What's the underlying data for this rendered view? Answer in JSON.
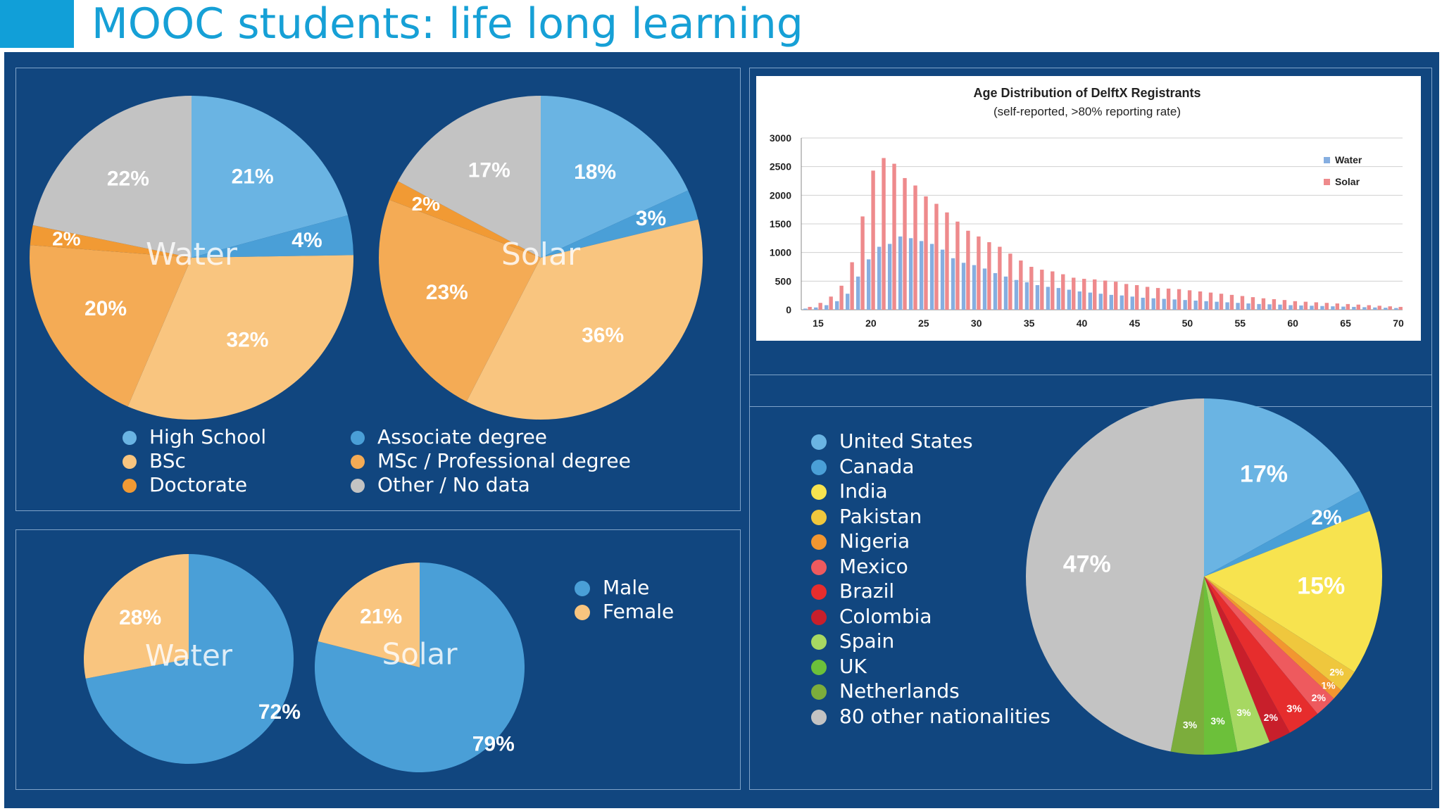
{
  "title": "MOOC students: life long learning",
  "colors": {
    "title": "#16a0d6",
    "background": "#11467f",
    "high_school": "#6ab4e3",
    "associate": "#4a9fd7",
    "bsc": "#f9c57f",
    "msc": "#f4ab55",
    "doctorate": "#f19a34",
    "other": "#c3c3c3"
  },
  "chart_data": [
    {
      "id": "education_water",
      "type": "pie",
      "center_label": "Water",
      "slices": [
        {
          "category": "High School",
          "value": 21,
          "label": "21%",
          "color": "#6ab4e3"
        },
        {
          "category": "Associate degree",
          "value": 4,
          "label": "4%",
          "color": "#4a9fd7"
        },
        {
          "category": "BSc",
          "value": 32,
          "label": "32%",
          "color": "#f9c57f"
        },
        {
          "category": "MSc / Professional degree",
          "value": 20,
          "label": "20%",
          "color": "#f4ab55"
        },
        {
          "category": "Doctorate",
          "value": 2,
          "label": "2%",
          "color": "#f19a34"
        },
        {
          "category": "Other / No data",
          "value": 22,
          "label": "22%",
          "color": "#c3c3c3"
        }
      ]
    },
    {
      "id": "education_solar",
      "type": "pie",
      "center_label": "Solar",
      "slices": [
        {
          "category": "High School",
          "value": 18,
          "label": "18%",
          "color": "#6ab4e3"
        },
        {
          "category": "Associate degree",
          "value": 3,
          "label": "3%",
          "color": "#4a9fd7"
        },
        {
          "category": "BSc",
          "value": 36,
          "label": "36%",
          "color": "#f9c57f"
        },
        {
          "category": "MSc / Professional degree",
          "value": 23,
          "label": "23%",
          "color": "#f4ab55"
        },
        {
          "category": "Doctorate",
          "value": 2,
          "label": "2%",
          "color": "#f19a34"
        },
        {
          "category": "Other / No data",
          "value": 17,
          "label": "17%",
          "color": "#c3c3c3"
        }
      ]
    },
    {
      "id": "education_legend",
      "type": "legend",
      "items": [
        {
          "label": "High School",
          "color": "#6ab4e3"
        },
        {
          "label": "Associate degree",
          "color": "#4a9fd7"
        },
        {
          "label": "BSc",
          "color": "#f9c57f"
        },
        {
          "label": "MSc / Professional degree",
          "color": "#f4ab55"
        },
        {
          "label": "Doctorate",
          "color": "#f19a34"
        },
        {
          "label": "Other / No data",
          "color": "#c3c3c3"
        }
      ]
    },
    {
      "id": "gender_water",
      "type": "pie",
      "center_label": "Water",
      "slices": [
        {
          "category": "Male",
          "value": 72,
          "label": "72%",
          "color": "#4a9fd7"
        },
        {
          "category": "Female",
          "value": 28,
          "label": "28%",
          "color": "#f9c57f"
        }
      ]
    },
    {
      "id": "gender_solar",
      "type": "pie",
      "center_label": "Solar",
      "slices": [
        {
          "category": "Male",
          "value": 79,
          "label": "79%",
          "color": "#4a9fd7"
        },
        {
          "category": "Female",
          "value": 21,
          "label": "21%",
          "color": "#f9c57f"
        }
      ]
    },
    {
      "id": "gender_legend",
      "type": "legend",
      "items": [
        {
          "label": "Male",
          "color": "#4a9fd7"
        },
        {
          "label": "Female",
          "color": "#f9c57f"
        }
      ]
    },
    {
      "id": "age_distribution",
      "type": "bar",
      "title": "Age Distribution of DelftX Registrants",
      "subtitle": "(self-reported, >80% reporting rate)",
      "x": [
        14,
        15,
        16,
        17,
        18,
        19,
        20,
        21,
        22,
        23,
        24,
        25,
        26,
        27,
        28,
        29,
        30,
        31,
        32,
        33,
        34,
        35,
        36,
        37,
        38,
        39,
        40,
        41,
        42,
        43,
        44,
        45,
        46,
        47,
        48,
        49,
        50,
        51,
        52,
        53,
        54,
        55,
        56,
        57,
        58,
        59,
        60,
        61,
        62,
        63,
        64,
        65,
        66,
        67,
        68,
        69,
        70
      ],
      "x_ticks": [
        15,
        20,
        25,
        30,
        35,
        40,
        45,
        50,
        55,
        60,
        65,
        70
      ],
      "xlim": [
        13.4,
        70.4
      ],
      "ylim": [
        0,
        3000
      ],
      "y_ticks": [
        0,
        500,
        1000,
        1500,
        2000,
        2500,
        3000
      ],
      "grid": true,
      "legend_position": "top-right",
      "series": [
        {
          "name": "Water",
          "color": "#86aee0",
          "values": [
            20,
            40,
            80,
            150,
            280,
            580,
            880,
            1100,
            1150,
            1280,
            1250,
            1200,
            1150,
            1050,
            900,
            820,
            780,
            720,
            640,
            580,
            520,
            480,
            430,
            400,
            380,
            350,
            320,
            300,
            280,
            260,
            250,
            230,
            210,
            200,
            190,
            180,
            170,
            160,
            150,
            140,
            130,
            120,
            110,
            100,
            95,
            90,
            80,
            75,
            70,
            65,
            60,
            55,
            50,
            45,
            40,
            35,
            30
          ]
        },
        {
          "name": "Solar",
          "color": "#ee8a8c",
          "values": [
            50,
            120,
            230,
            420,
            830,
            1630,
            2430,
            2650,
            2550,
            2300,
            2170,
            1980,
            1850,
            1700,
            1540,
            1380,
            1280,
            1180,
            1100,
            980,
            860,
            750,
            700,
            670,
            620,
            560,
            540,
            530,
            510,
            490,
            450,
            430,
            400,
            380,
            370,
            360,
            340,
            320,
            300,
            280,
            260,
            240,
            220,
            200,
            185,
            170,
            150,
            140,
            130,
            120,
            110,
            100,
            90,
            80,
            70,
            60,
            50
          ]
        }
      ]
    },
    {
      "id": "nationality",
      "type": "pie",
      "slices": [
        {
          "category": "United States",
          "value": 17,
          "label": "17%",
          "color": "#6ab4e3"
        },
        {
          "category": "Canada",
          "value": 2,
          "label": "2%",
          "color": "#4a9fd7"
        },
        {
          "category": "India",
          "value": 15,
          "label": "15%",
          "color": "#f7e34f"
        },
        {
          "category": "Pakistan",
          "value": 2,
          "label": "2%",
          "color": "#efc73d"
        },
        {
          "category": "Nigeria",
          "value": 1,
          "label": "1%",
          "color": "#f29630"
        },
        {
          "category": "Mexico",
          "value": 2,
          "label": "2%",
          "color": "#ee5a5e"
        },
        {
          "category": "Brazil",
          "value": 3,
          "label": "3%",
          "color": "#e62d2d"
        },
        {
          "category": "Colombia",
          "value": 2,
          "label": "2%",
          "color": "#c81f2b"
        },
        {
          "category": "Spain",
          "value": 3,
          "label": "3%",
          "color": "#a7d862"
        },
        {
          "category": "UK",
          "value": 3,
          "label": "3%",
          "color": "#6cc03a"
        },
        {
          "category": "Netherlands",
          "value": 3,
          "label": "3%",
          "color": "#7cad3c"
        },
        {
          "category": "80 other nationalities",
          "value": 47,
          "label": "47%",
          "color": "#c3c3c3"
        }
      ]
    }
  ]
}
